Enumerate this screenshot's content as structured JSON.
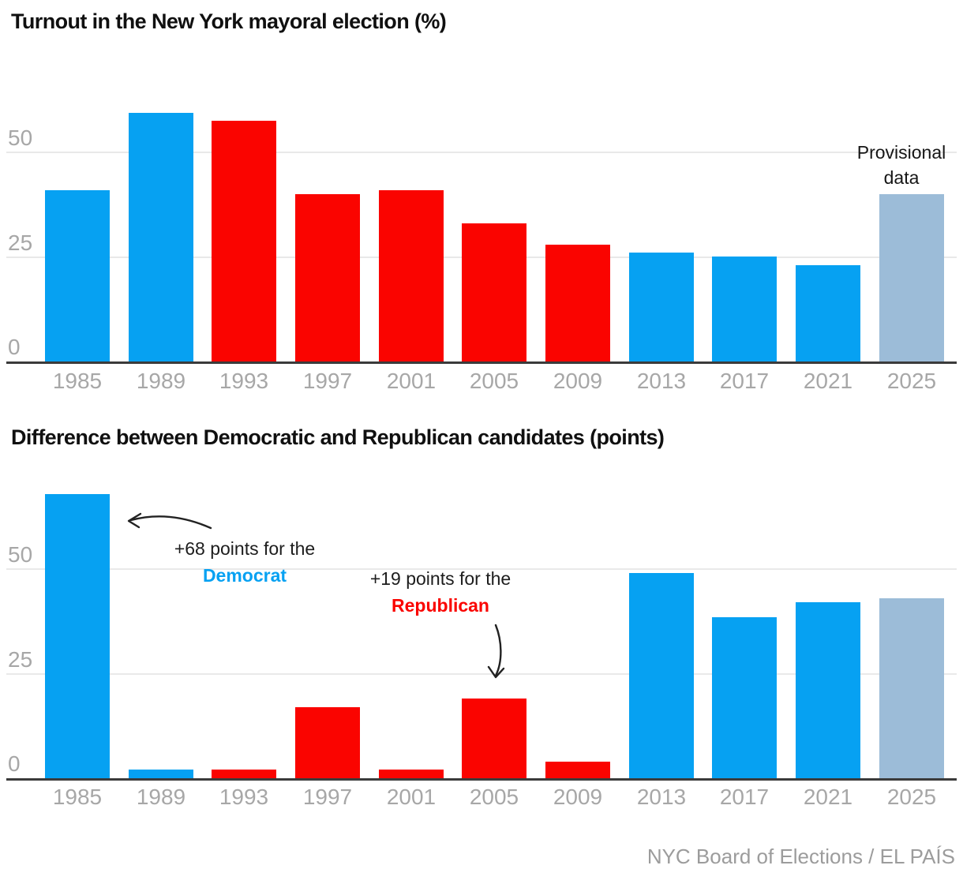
{
  "source": "NYC Board of Elections / EL PAÍS",
  "colors": {
    "dem": "#06a1f2",
    "rep": "#fa0400",
    "prov": "#9cbcd8",
    "grid": "#e9e9e9",
    "axis": "#3b3b3b",
    "tick": "#a7a7a7",
    "title": "#101010",
    "annotation_text": "#1d1d1d"
  },
  "chart_data": [
    {
      "type": "bar",
      "title": "Turnout in the New York mayoral election (%)",
      "categories": [
        "1985",
        "1989",
        "1993",
        "1997",
        "2001",
        "2005",
        "2009",
        "2013",
        "2017",
        "2021",
        "2025"
      ],
      "values": [
        41,
        59.5,
        57.5,
        40,
        41,
        33,
        28,
        26,
        25,
        23,
        40
      ],
      "bar_party": [
        "dem",
        "dem",
        "rep",
        "rep",
        "rep",
        "rep",
        "rep",
        "dem",
        "dem",
        "dem",
        "prov"
      ],
      "yticks": [
        0,
        25,
        50
      ],
      "ylim": [
        0,
        62
      ],
      "grid": "horizontal-25-50",
      "legend_position": "none",
      "provisional_note": [
        "Provisional",
        "data"
      ]
    },
    {
      "type": "bar",
      "title": "Difference between Democratic and Republican candidates (points)",
      "categories": [
        "1985",
        "1989",
        "1993",
        "1997",
        "2001",
        "2005",
        "2009",
        "2013",
        "2017",
        "2021",
        "2025"
      ],
      "values": [
        68,
        2,
        2,
        17,
        2,
        19,
        4,
        49,
        38.5,
        42,
        43
      ],
      "bar_party": [
        "dem",
        "dem",
        "rep",
        "rep",
        "rep",
        "rep",
        "rep",
        "dem",
        "dem",
        "dem",
        "prov"
      ],
      "yticks": [
        0,
        25,
        50
      ],
      "ylim": [
        0,
        72
      ],
      "grid": "horizontal-25-50",
      "legend_position": "none",
      "annotations": [
        {
          "prefix": "+68 points for the",
          "party_word": "Democrat",
          "party": "dem"
        },
        {
          "prefix": "+19 points for the",
          "party_word": "Republican",
          "party": "rep"
        }
      ]
    }
  ]
}
